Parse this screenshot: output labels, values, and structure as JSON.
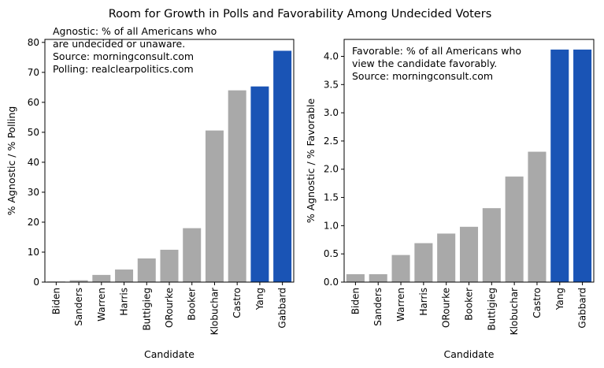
{
  "figure": {
    "suptitle": "Room for Growth in Polls and Favorability Among Undecided Voters"
  },
  "colors": {
    "gray": "#a9a9a9",
    "blue": "#1a54b5"
  },
  "chart_data": [
    {
      "type": "bar",
      "xlabel": "Candidate",
      "ylabel": "% Agnostic / % Polling",
      "ylim": [
        0,
        81
      ],
      "yticks": [
        0,
        10,
        20,
        30,
        40,
        50,
        60,
        70,
        80
      ],
      "categories": [
        "Biden",
        "Sanders",
        "Warren",
        "Harris",
        "Buttigieg",
        "ORourke",
        "Booker",
        "Klobuchar",
        "Castro",
        "Yang",
        "Gabbard"
      ],
      "values": [
        0.2,
        0.6,
        2.4,
        4.2,
        7.9,
        10.8,
        18.0,
        50.6,
        64.0,
        65.3,
        77.2
      ],
      "highlight": [
        "Yang",
        "Gabbard"
      ],
      "annotation": [
        "Agnostic: % of all Americans who",
        "are undecided or unaware.",
        "Source: morningconsult.com",
        "Polling: realclearpolitics.com"
      ]
    },
    {
      "type": "bar",
      "xlabel": "Candidate",
      "ylabel": "% Agnostic / % Favorable",
      "ylim": [
        0,
        4.3
      ],
      "yticks": [
        "0.0",
        "0.5",
        "1.0",
        "1.5",
        "2.0",
        "2.5",
        "3.0",
        "3.5",
        "4.0"
      ],
      "categories": [
        "Biden",
        "Sanders",
        "Warren",
        "Harris",
        "ORourke",
        "Booker",
        "Buttigieg",
        "Klobuchar",
        "Castro",
        "Yang",
        "Gabbard"
      ],
      "values": [
        0.14,
        0.14,
        0.48,
        0.69,
        0.86,
        0.98,
        1.31,
        1.87,
        2.31,
        4.12,
        4.12
      ],
      "highlight": [
        "Yang",
        "Gabbard"
      ],
      "annotation": [
        "Favorable: % of all Americans who",
        "view the candidate favorably.",
        "Source: morningconsult.com"
      ]
    }
  ]
}
